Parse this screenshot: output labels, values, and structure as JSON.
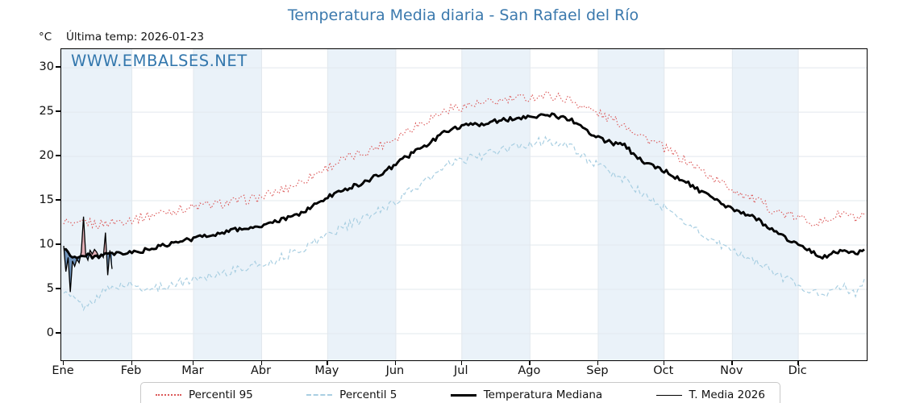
{
  "title": "Temperatura Media diaria - San Rafael del Río",
  "unit_label": "°C",
  "subtitle": "Última temp: 2026-01-23",
  "watermark": "WWW.EMBALSES.NET",
  "colors": {
    "title_blue": "#3b79ad",
    "watermark_blue": "#3377ad",
    "percentil95_red": "#dc5a5a",
    "percentil5_blue": "#a9cfe2",
    "median_black": "#000000",
    "fill_above": "rgba(222,110,118,0.5)",
    "fill_below": "rgba(70,115,165,0.75)",
    "month_band": "#eaf2f9",
    "gridline": "#e2e8ee"
  },
  "legend": [
    {
      "label": "Percentil 95",
      "color": "#dc5a5a",
      "dash": "dotted",
      "lw": 2
    },
    {
      "label": "Percentil 5",
      "color": "#a9cfe2",
      "dash": "dashed",
      "lw": 2
    },
    {
      "label": "Temperatura Mediana",
      "color": "#000000",
      "dash": "solid",
      "lw": 3
    },
    {
      "label": "T. Media 2026",
      "color": "#000000",
      "dash": "solid",
      "lw": 1
    }
  ],
  "chart_data": {
    "type": "line",
    "title": "Temperatura Media diaria - San Rafael del Río",
    "xlabel": "",
    "ylabel": "°C",
    "ylim": [
      -3,
      32.1
    ],
    "y_ticks": [
      0,
      5,
      10,
      15,
      20,
      25,
      30
    ],
    "x_tick_labels": [
      "Ene",
      "Feb",
      "Mar",
      "Abr",
      "May",
      "Jun",
      "Jul",
      "Ago",
      "Sep",
      "Oct",
      "Nov",
      "Dic"
    ],
    "month_start_days": [
      1,
      32,
      60,
      91,
      121,
      152,
      182,
      213,
      244,
      274,
      305,
      335
    ],
    "days_in_year": 365,
    "grid": true,
    "legend_position": "bottom-center",
    "band_months_shaded": [
      "Ene",
      "Mar",
      "May",
      "Jul",
      "Sep",
      "Nov"
    ],
    "anchor_days": [
      1,
      6,
      11,
      16,
      21,
      26,
      31,
      36,
      41,
      46,
      51,
      56,
      61,
      66,
      71,
      76,
      81,
      86,
      91,
      96,
      101,
      106,
      111,
      116,
      121,
      126,
      131,
      136,
      141,
      146,
      151,
      156,
      161,
      166,
      171,
      176,
      181,
      186,
      191,
      196,
      201,
      206,
      211,
      216,
      221,
      226,
      231,
      236,
      241,
      246,
      251,
      256,
      261,
      266,
      271,
      276,
      281,
      286,
      291,
      296,
      301,
      306,
      311,
      316,
      321,
      326,
      331,
      336,
      341,
      346,
      351,
      356,
      361,
      365
    ],
    "series": [
      {
        "name": "Percentil 95",
        "color": "#dc5a5a",
        "style": "dotted",
        "width": 1.2,
        "noise_amp": 0.55,
        "values": [
          12.8,
          12.0,
          12.6,
          12.3,
          12.5,
          12.7,
          12.9,
          13.1,
          13.4,
          13.7,
          13.9,
          14.1,
          14.3,
          14.5,
          14.6,
          14.8,
          15.0,
          15.2,
          15.4,
          15.8,
          16.3,
          16.8,
          17.4,
          18.1,
          18.8,
          19.4,
          19.9,
          20.3,
          20.8,
          21.4,
          22.0,
          22.8,
          23.5,
          24.1,
          24.7,
          25.3,
          25.6,
          25.8,
          25.9,
          26.1,
          26.3,
          26.5,
          26.6,
          26.8,
          26.9,
          26.7,
          26.4,
          25.8,
          25.2,
          24.6,
          24.1,
          23.6,
          22.8,
          22.0,
          21.4,
          20.6,
          19.9,
          19.2,
          18.4,
          17.6,
          16.9,
          16.2,
          15.6,
          15.0,
          14.3,
          13.7,
          13.3,
          13.0,
          12.7,
          12.5,
          13.2,
          13.6,
          12.9,
          13.2
        ]
      },
      {
        "name": "Percentil 5",
        "color": "#a9cfe2",
        "style": "dashed",
        "width": 1.2,
        "noise_amp": 0.5,
        "values": [
          4.6,
          3.9,
          2.9,
          4.2,
          5.0,
          5.4,
          5.5,
          5.2,
          5.0,
          5.3,
          5.6,
          5.9,
          6.2,
          6.5,
          6.8,
          7.0,
          7.3,
          7.6,
          7.8,
          8.2,
          8.7,
          9.2,
          9.8,
          10.5,
          11.2,
          11.8,
          12.3,
          12.8,
          13.4,
          14.1,
          14.8,
          15.7,
          16.5,
          17.3,
          18.1,
          19.0,
          19.5,
          19.8,
          20.1,
          20.4,
          20.7,
          21.0,
          21.3,
          21.6,
          21.8,
          21.5,
          21.1,
          20.3,
          19.4,
          18.6,
          18.0,
          17.4,
          16.4,
          15.4,
          14.7,
          13.8,
          13.0,
          12.2,
          11.3,
          10.5,
          9.8,
          9.2,
          8.7,
          8.2,
          7.4,
          6.6,
          6.0,
          5.4,
          4.8,
          4.2,
          4.9,
          5.3,
          4.5,
          5.7
        ]
      },
      {
        "name": "Temperatura Mediana",
        "color": "#000000",
        "style": "solid",
        "width": 2.9,
        "noise_amp": 0.25,
        "values": [
          9.6,
          8.6,
          8.8,
          8.7,
          8.9,
          9.0,
          9.1,
          9.3,
          9.6,
          9.9,
          10.2,
          10.5,
          10.8,
          11.1,
          11.3,
          11.6,
          11.8,
          12.0,
          12.1,
          12.5,
          12.9,
          13.3,
          13.9,
          14.6,
          15.4,
          16.0,
          16.5,
          16.9,
          17.5,
          18.2,
          18.9,
          19.8,
          20.6,
          21.3,
          22.1,
          23.0,
          23.4,
          23.5,
          23.7,
          23.9,
          24.1,
          24.3,
          24.5,
          24.6,
          24.7,
          24.5,
          24.2,
          23.4,
          22.6,
          21.9,
          21.5,
          21.2,
          20.1,
          19.2,
          18.8,
          18.1,
          17.5,
          16.8,
          16.0,
          15.2,
          14.5,
          13.9,
          13.5,
          13.0,
          12.1,
          11.2,
          10.6,
          10.0,
          9.3,
          8.5,
          9.2,
          9.5,
          8.9,
          9.6
        ]
      },
      {
        "name": "T. Media 2026",
        "color": "#000000",
        "style": "solid",
        "width": 1.3,
        "noise_amp": 0,
        "start_day": 1,
        "daily_values": [
          9.9,
          7.0,
          8.6,
          4.7,
          8.2,
          7.6,
          8.4,
          8.0,
          9.2,
          13.2,
          8.9,
          8.3,
          9.4,
          9.0,
          9.5,
          9.2,
          8.7,
          9.0,
          8.6,
          11.4,
          6.6,
          9.4,
          7.3
        ]
      }
    ],
    "fill_between": {
      "series_a": "T. Media 2026",
      "series_b": "Temperatura Mediana",
      "above_color": "rgba(222,110,118,0.5)",
      "below_color": "rgba(70,115,165,0.75)"
    }
  }
}
